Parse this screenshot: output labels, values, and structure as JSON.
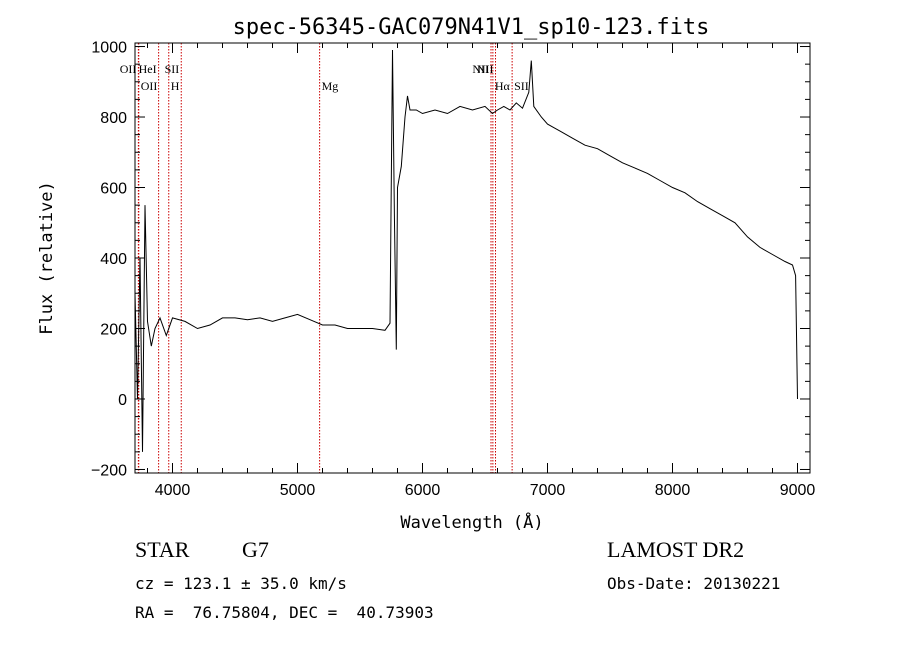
{
  "chart_data": {
    "type": "line",
    "title": "spec-56345-GAC079N41V1_sp10-123.fits",
    "xlabel": "Wavelength (Å)",
    "ylabel": "Flux (relative)",
    "xlim": [
      3700,
      9100
    ],
    "ylim": [
      -210,
      1010
    ],
    "xticks": [
      4000,
      5000,
      6000,
      7000,
      8000,
      9000
    ],
    "yticks": [
      -200,
      0,
      200,
      400,
      600,
      800,
      1000
    ],
    "series": [
      {
        "x": [
          3700,
          3720,
          3740,
          3760,
          3780,
          3800,
          3830,
          3860,
          3900,
          3950,
          4000,
          4100,
          4200,
          4300,
          4400,
          4500,
          4600,
          4700,
          4800,
          4900,
          5000,
          5100,
          5200,
          5300,
          5400,
          5500,
          5600,
          5700,
          5740,
          5760,
          5775,
          5790,
          5800,
          5830,
          5860,
          5880,
          5900,
          5950,
          6000,
          6100,
          6200,
          6300,
          6400,
          6500,
          6560,
          6600,
          6650,
          6700,
          6750,
          6800,
          6850,
          6870,
          6890,
          6950,
          7000,
          7100,
          7200,
          7300,
          7400,
          7500,
          7600,
          7700,
          7800,
          7900,
          8000,
          8100,
          8200,
          8300,
          8400,
          8500,
          8600,
          8700,
          8800,
          8900,
          8960,
          8985,
          9000
        ],
        "values": [
          300,
          0,
          400,
          -150,
          550,
          220,
          150,
          200,
          230,
          180,
          230,
          220,
          200,
          210,
          230,
          230,
          225,
          230,
          220,
          230,
          240,
          225,
          210,
          210,
          200,
          200,
          200,
          195,
          215,
          990,
          520,
          140,
          600,
          660,
          800,
          860,
          820,
          820,
          810,
          820,
          810,
          830,
          820,
          830,
          810,
          820,
          830,
          820,
          840,
          825,
          870,
          960,
          830,
          800,
          780,
          760,
          740,
          720,
          710,
          690,
          670,
          655,
          640,
          620,
          600,
          585,
          560,
          540,
          520,
          500,
          460,
          430,
          410,
          390,
          380,
          350,
          0
        ]
      }
    ],
    "markers": [
      {
        "label": "OII",
        "x": 3727
      },
      {
        "label": "OII",
        "x": 3730
      },
      {
        "label": "HeI",
        "x": 3889
      },
      {
        "label": "H",
        "x": 3970
      },
      {
        "label": "SII",
        "x": 4070
      },
      {
        "label": "Mg",
        "x": 5177
      },
      {
        "label": "NII",
        "x": 6548
      },
      {
        "label": "Hα",
        "x": 6563
      },
      {
        "label": "NII",
        "x": 6584
      },
      {
        "label": "SII",
        "x": 6717
      }
    ]
  },
  "footer": {
    "object_class": "STAR",
    "subclass": "G7",
    "survey": "LAMOST DR2",
    "cz": "cz = 123.1 ± 35.0 km/s",
    "obs_date": "Obs-Date: 20130221",
    "coords": "RA =  76.75804, DEC =  40.73903"
  },
  "colors": {
    "line": "#000000",
    "marker": "#cc0000"
  }
}
